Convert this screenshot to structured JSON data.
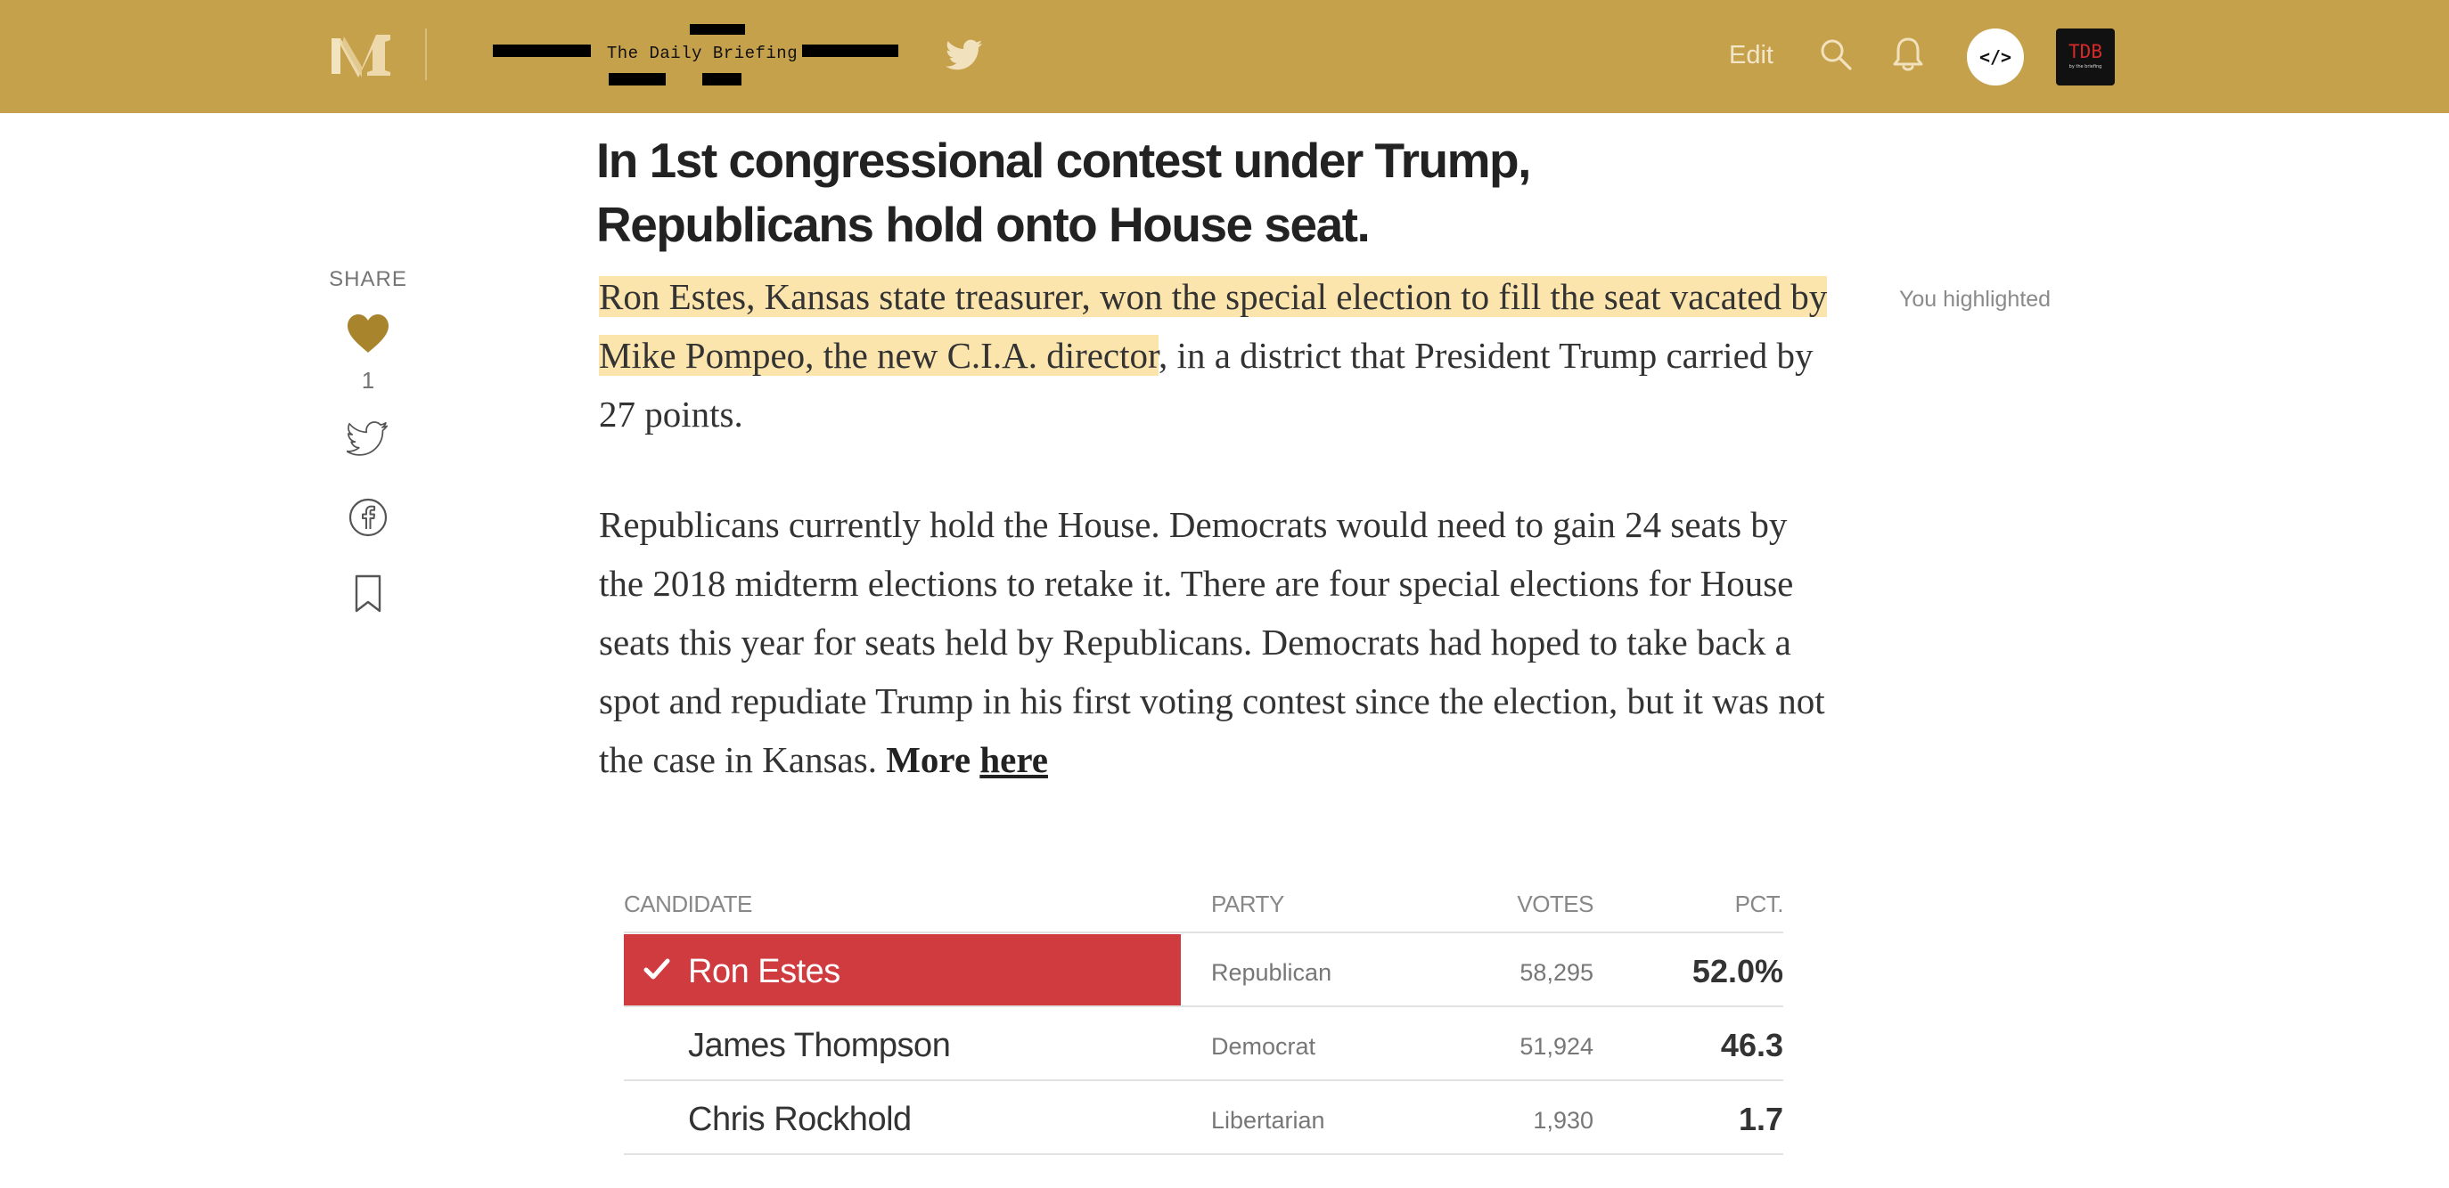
{
  "topbar": {
    "background": "#c6a14c",
    "logo_icon": "medium-m-logo",
    "publication": {
      "name": "The Daily Briefing"
    },
    "twitter_icon": "twitter-icon",
    "edit_label": "Edit",
    "search_icon": "search-icon",
    "bell_icon": "bell-icon",
    "embed_button_label": "</>",
    "avatar": {
      "text": "TDB",
      "subtext": "by the briefing"
    }
  },
  "share_rail": {
    "label": "SHARE",
    "heart_icon": "heart-icon",
    "heart_color": "#a8852c",
    "like_count": "1",
    "twitter_icon": "twitter-outline-icon",
    "facebook_icon": "facebook-icon",
    "bookmark_icon": "bookmark-icon"
  },
  "article": {
    "headline": "In 1st congressional contest under Trump, Republicans hold onto House seat.",
    "para1": {
      "highlighted": "Ron Estes, Kansas state treasurer, won the special election to fill the seat vacated by Mike Pompeo, the new C.I.A. director",
      "rest": ", in a district that President Trump carried by 27 points."
    },
    "para2": {
      "text": "Republicans currently hold the House. Democrats would need to gain 24 seats by the 2018 midterm elections to retake it. There are four special elections for House seats this year for seats held by Republicans. Democrats had hoped to take back a spot and repudiate Trump in his first voting contest since the election, but it was not the case in Kansas.",
      "more_label": "More",
      "link_label": "here"
    },
    "highlight_note": "You highlighted",
    "highlight_color": "#fbe5ad"
  },
  "results": {
    "headers": {
      "candidate": "CANDIDATE",
      "party": "PARTY",
      "votes": "VOTES",
      "pct": "PCT."
    },
    "winner_color": "#cf3b3e",
    "check_icon": "checkmark-icon",
    "rows": [
      {
        "candidate": "Ron Estes",
        "party": "Republican",
        "votes": "58,295",
        "pct": "52.0%",
        "winner": true
      },
      {
        "candidate": "James Thompson",
        "party": "Democrat",
        "votes": "51,924",
        "pct": "46.3",
        "winner": false
      },
      {
        "candidate": "Chris Rockhold",
        "party": "Libertarian",
        "votes": "1,930",
        "pct": "1.7",
        "winner": false
      }
    ]
  }
}
